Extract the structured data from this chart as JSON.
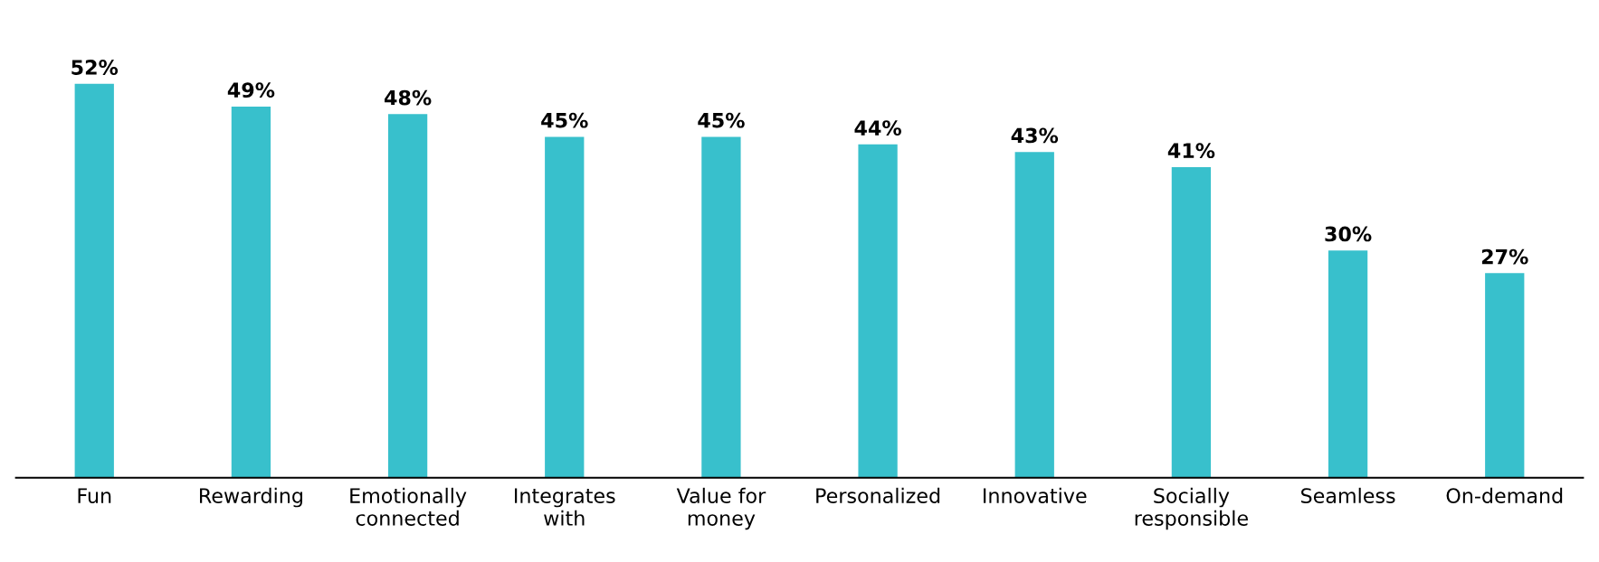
{
  "chart_data": {
    "type": "bar",
    "categories": [
      "Fun",
      "Rewarding",
      "Emotionally\nconnected",
      "Integrates\nwith",
      "Value for\nmoney",
      "Personalized",
      "Innovative",
      "Socially\nresponsible",
      "Seamless",
      "On-demand"
    ],
    "values": [
      52,
      49,
      48,
      45,
      45,
      44,
      43,
      41,
      30,
      27
    ],
    "value_labels": [
      "52%",
      "49%",
      "48%",
      "45%",
      "45%",
      "44%",
      "43%",
      "41%",
      "30%",
      "27%"
    ],
    "color": "#38c0cc",
    "tick_labels": "x",
    "grid": false,
    "legend": false
  }
}
